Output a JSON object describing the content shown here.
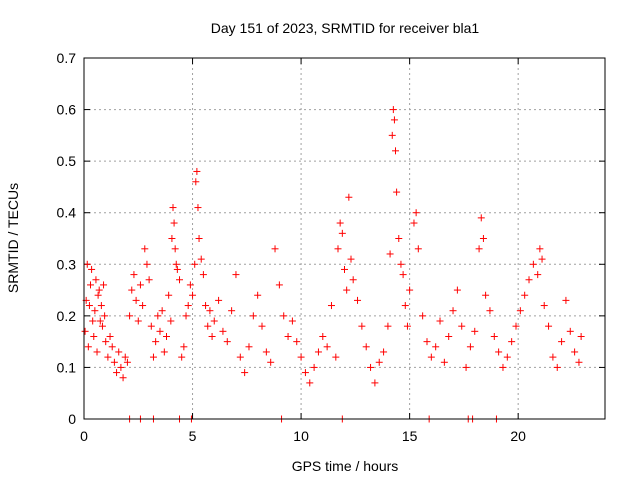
{
  "chart_data": {
    "type": "scatter",
    "title": "Day 151 of 2023, SRMTID for receiver bla1",
    "xlabel": "GPS time / hours",
    "ylabel": "SRMTID / TECUs",
    "xlim": [
      0,
      24
    ],
    "ylim": [
      0,
      0.7
    ],
    "xticks": [
      0,
      5,
      10,
      15,
      20
    ],
    "yticks": [
      0,
      0.1,
      0.2,
      0.3,
      0.4,
      0.5,
      0.6,
      0.7
    ],
    "grid": true,
    "marker": "+",
    "series": [
      {
        "name": "SRMTID",
        "color": "#ff0000",
        "points": [
          [
            0.05,
            0.17
          ],
          [
            0.1,
            0.23
          ],
          [
            0.15,
            0.3
          ],
          [
            0.2,
            0.14
          ],
          [
            0.25,
            0.22
          ],
          [
            0.3,
            0.26
          ],
          [
            0.35,
            0.29
          ],
          [
            0.4,
            0.19
          ],
          [
            0.45,
            0.16
          ],
          [
            0.5,
            0.21
          ],
          [
            0.55,
            0.27
          ],
          [
            0.6,
            0.13
          ],
          [
            0.65,
            0.24
          ],
          [
            0.7,
            0.25
          ],
          [
            0.75,
            0.19
          ],
          [
            0.8,
            0.22
          ],
          [
            0.85,
            0.18
          ],
          [
            0.9,
            0.26
          ],
          [
            0.95,
            0.2
          ],
          [
            1.0,
            0.15
          ],
          [
            1.1,
            0.12
          ],
          [
            1.2,
            0.16
          ],
          [
            1.3,
            0.14
          ],
          [
            1.4,
            0.11
          ],
          [
            1.5,
            0.09
          ],
          [
            1.6,
            0.13
          ],
          [
            1.7,
            0.1
          ],
          [
            1.8,
            0.08
          ],
          [
            1.9,
            0.12
          ],
          [
            2.0,
            0.11
          ],
          [
            2.1,
            0.2
          ],
          [
            2.2,
            0.25
          ],
          [
            2.3,
            0.28
          ],
          [
            2.4,
            0.23
          ],
          [
            2.5,
            0.19
          ],
          [
            2.6,
            0.26
          ],
          [
            2.7,
            0.22
          ],
          [
            2.8,
            0.33
          ],
          [
            2.9,
            0.3
          ],
          [
            3.0,
            0.27
          ],
          [
            3.1,
            0.18
          ],
          [
            3.2,
            0.12
          ],
          [
            3.3,
            0.15
          ],
          [
            3.4,
            0.2
          ],
          [
            3.5,
            0.17
          ],
          [
            3.6,
            0.21
          ],
          [
            3.7,
            0.13
          ],
          [
            3.8,
            0.16
          ],
          [
            3.9,
            0.24
          ],
          [
            4.0,
            0.19
          ],
          [
            4.05,
            0.35
          ],
          [
            4.1,
            0.41
          ],
          [
            4.15,
            0.38
          ],
          [
            4.2,
            0.33
          ],
          [
            4.25,
            0.3
          ],
          [
            4.3,
            0.29
          ],
          [
            4.4,
            0.27
          ],
          [
            4.5,
            0.12
          ],
          [
            4.6,
            0.14
          ],
          [
            4.7,
            0.2
          ],
          [
            4.8,
            0.22
          ],
          [
            4.9,
            0.26
          ],
          [
            5.0,
            0.24
          ],
          [
            5.1,
            0.3
          ],
          [
            5.15,
            0.46
          ],
          [
            5.2,
            0.48
          ],
          [
            5.25,
            0.41
          ],
          [
            5.3,
            0.35
          ],
          [
            5.4,
            0.31
          ],
          [
            5.5,
            0.28
          ],
          [
            5.6,
            0.22
          ],
          [
            5.7,
            0.18
          ],
          [
            5.8,
            0.21
          ],
          [
            5.9,
            0.16
          ],
          [
            6.0,
            0.19
          ],
          [
            6.2,
            0.23
          ],
          [
            6.4,
            0.17
          ],
          [
            6.6,
            0.15
          ],
          [
            6.8,
            0.21
          ],
          [
            7.0,
            0.28
          ],
          [
            7.2,
            0.12
          ],
          [
            7.4,
            0.09
          ],
          [
            7.6,
            0.14
          ],
          [
            7.8,
            0.2
          ],
          [
            8.0,
            0.24
          ],
          [
            8.2,
            0.18
          ],
          [
            8.4,
            0.13
          ],
          [
            8.6,
            0.11
          ],
          [
            8.8,
            0.33
          ],
          [
            9.0,
            0.26
          ],
          [
            9.2,
            0.2
          ],
          [
            9.4,
            0.16
          ],
          [
            9.6,
            0.19
          ],
          [
            9.8,
            0.15
          ],
          [
            10.0,
            0.12
          ],
          [
            10.2,
            0.09
          ],
          [
            10.4,
            0.07
          ],
          [
            10.6,
            0.1
          ],
          [
            10.8,
            0.13
          ],
          [
            11.0,
            0.16
          ],
          [
            11.2,
            0.14
          ],
          [
            11.4,
            0.22
          ],
          [
            11.6,
            0.12
          ],
          [
            11.7,
            0.33
          ],
          [
            11.8,
            0.38
          ],
          [
            11.9,
            0.36
          ],
          [
            12.0,
            0.29
          ],
          [
            12.1,
            0.25
          ],
          [
            12.2,
            0.43
          ],
          [
            12.3,
            0.31
          ],
          [
            12.4,
            0.27
          ],
          [
            12.6,
            0.23
          ],
          [
            12.8,
            0.18
          ],
          [
            13.0,
            0.14
          ],
          [
            13.2,
            0.1
          ],
          [
            13.4,
            0.07
          ],
          [
            13.6,
            0.11
          ],
          [
            13.8,
            0.13
          ],
          [
            14.0,
            0.18
          ],
          [
            14.1,
            0.32
          ],
          [
            14.2,
            0.55
          ],
          [
            14.25,
            0.6
          ],
          [
            14.3,
            0.58
          ],
          [
            14.35,
            0.52
          ],
          [
            14.4,
            0.44
          ],
          [
            14.5,
            0.35
          ],
          [
            14.6,
            0.3
          ],
          [
            14.7,
            0.28
          ],
          [
            14.8,
            0.22
          ],
          [
            14.9,
            0.18
          ],
          [
            15.0,
            0.25
          ],
          [
            15.2,
            0.38
          ],
          [
            15.3,
            0.4
          ],
          [
            15.4,
            0.33
          ],
          [
            15.6,
            0.2
          ],
          [
            15.8,
            0.15
          ],
          [
            16.0,
            0.12
          ],
          [
            16.2,
            0.14
          ],
          [
            16.4,
            0.19
          ],
          [
            16.6,
            0.11
          ],
          [
            16.8,
            0.16
          ],
          [
            17.0,
            0.21
          ],
          [
            17.2,
            0.25
          ],
          [
            17.4,
            0.18
          ],
          [
            17.6,
            0.1
          ],
          [
            17.8,
            0.14
          ],
          [
            18.0,
            0.17
          ],
          [
            18.2,
            0.33
          ],
          [
            18.3,
            0.39
          ],
          [
            18.4,
            0.35
          ],
          [
            18.5,
            0.24
          ],
          [
            18.7,
            0.21
          ],
          [
            18.9,
            0.16
          ],
          [
            19.1,
            0.13
          ],
          [
            19.3,
            0.1
          ],
          [
            19.5,
            0.12
          ],
          [
            19.7,
            0.15
          ],
          [
            19.9,
            0.18
          ],
          [
            20.1,
            0.21
          ],
          [
            20.3,
            0.24
          ],
          [
            20.5,
            0.27
          ],
          [
            20.7,
            0.3
          ],
          [
            20.9,
            0.28
          ],
          [
            21.0,
            0.33
          ],
          [
            21.1,
            0.31
          ],
          [
            21.2,
            0.22
          ],
          [
            21.4,
            0.18
          ],
          [
            21.6,
            0.12
          ],
          [
            21.8,
            0.1
          ],
          [
            22.0,
            0.15
          ],
          [
            22.2,
            0.23
          ],
          [
            22.4,
            0.17
          ],
          [
            22.6,
            0.13
          ],
          [
            22.8,
            0.11
          ],
          [
            22.9,
            0.16
          ]
        ]
      },
      {
        "name": "gaps",
        "color": "#ff0000",
        "points": [
          [
            2.1,
            0
          ],
          [
            2.6,
            0
          ],
          [
            3.2,
            0
          ],
          [
            4.4,
            0
          ],
          [
            4.95,
            0
          ],
          [
            9.1,
            0
          ],
          [
            11.9,
            0
          ],
          [
            15.9,
            0
          ],
          [
            17.7,
            0
          ],
          [
            17.9,
            0
          ],
          [
            19.0,
            0
          ]
        ]
      }
    ]
  }
}
